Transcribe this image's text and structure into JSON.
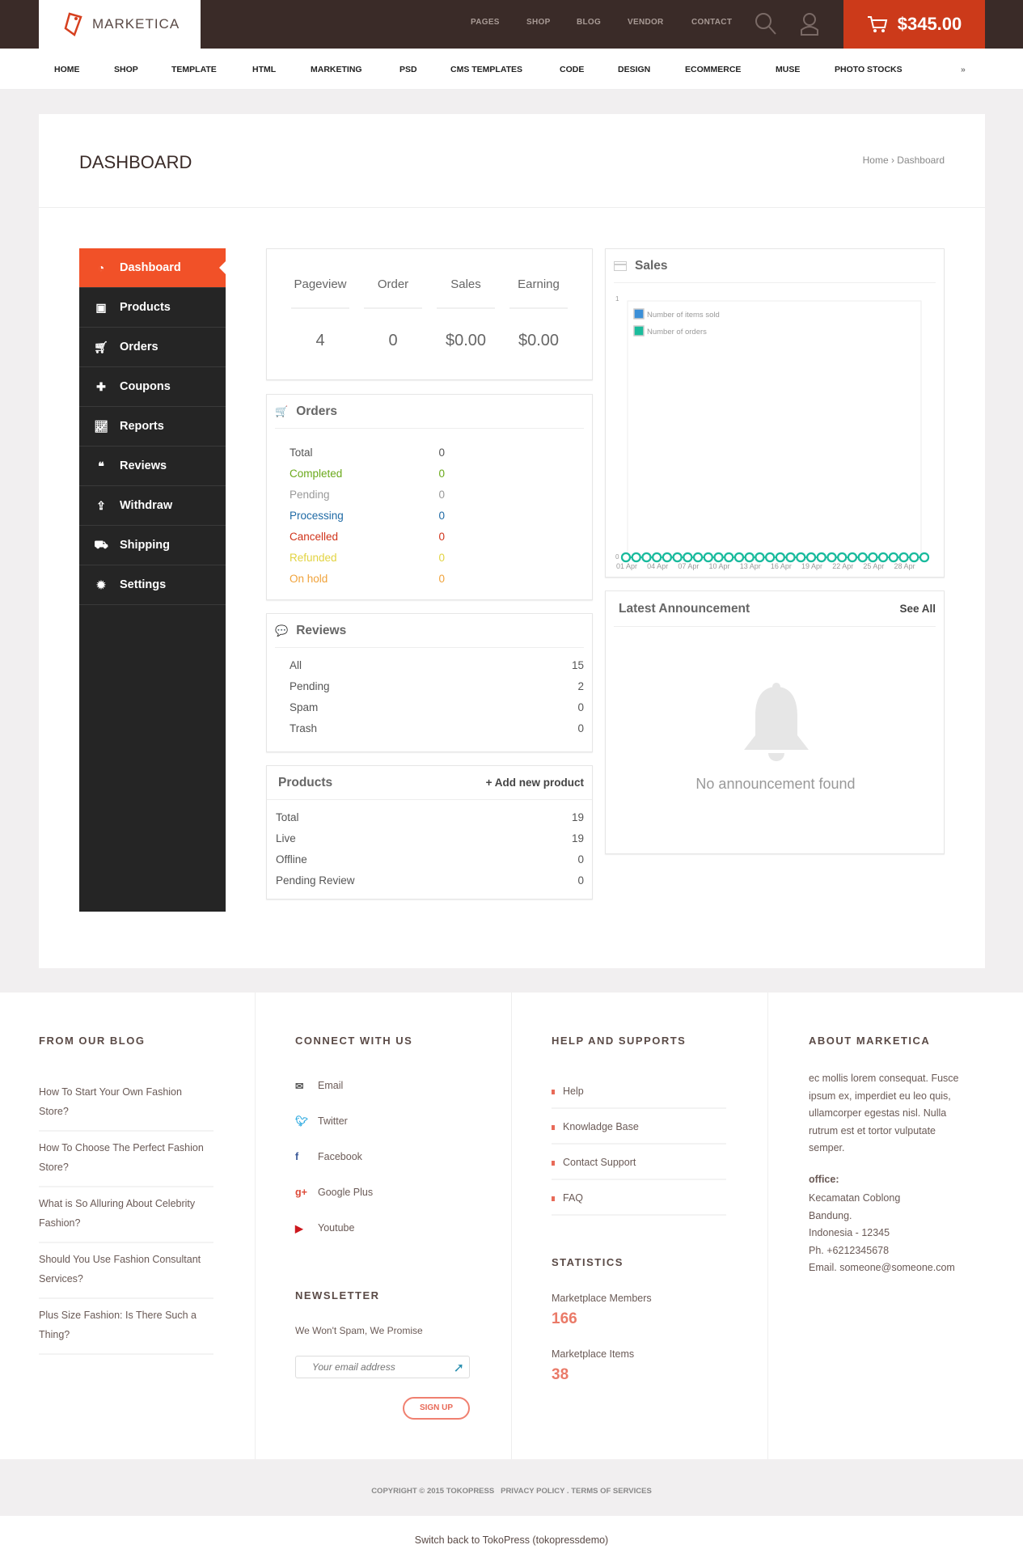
{
  "header": {
    "logo": "MARKETICA",
    "top_links": [
      "PAGES",
      "SHOP",
      "BLOG",
      "VENDOR",
      "CONTACT"
    ],
    "cart_total": "$345.00",
    "brand_color": "#cc3a1a"
  },
  "nav": [
    "HOME",
    "SHOP",
    "TEMPLATE",
    "HTML",
    "MARKETING",
    "PSD",
    "CMS TEMPLATES",
    "CODE",
    "DESIGN",
    "ECOMMERCE",
    "MUSE",
    "PHOTO STOCKS"
  ],
  "page": {
    "title": "DASHBOARD",
    "breadcrumb": "Home › Dashboard"
  },
  "sidebar": [
    {
      "label": "Dashboard",
      "icon": "dashboard-icon",
      "active": true
    },
    {
      "label": "Products",
      "icon": "briefcase-icon"
    },
    {
      "label": "Orders",
      "icon": "cart-icon"
    },
    {
      "label": "Coupons",
      "icon": "gift-icon"
    },
    {
      "label": "Reports",
      "icon": "chart-line-icon"
    },
    {
      "label": "Reviews",
      "icon": "comments-icon"
    },
    {
      "label": "Withdraw",
      "icon": "upload-icon"
    },
    {
      "label": "Shipping",
      "icon": "truck-icon"
    },
    {
      "label": "Settings",
      "icon": "gear-icon"
    }
  ],
  "stats": {
    "headers": [
      "Pageview",
      "Order",
      "Sales",
      "Earning"
    ],
    "values": [
      "4",
      "0",
      "$0.00",
      "$0.00"
    ]
  },
  "orders": {
    "title": "Orders",
    "rows": [
      {
        "label": "Total",
        "value": "0",
        "color": "#555"
      },
      {
        "label": "Completed",
        "value": "0",
        "color": "#6aa91a"
      },
      {
        "label": "Pending",
        "value": "0",
        "color": "#999"
      },
      {
        "label": "Processing",
        "value": "0",
        "color": "#1f6aa5"
      },
      {
        "label": "Cancelled",
        "value": "0",
        "color": "#d0331a"
      },
      {
        "label": "Refunded",
        "value": "0",
        "color": "#e2d341"
      },
      {
        "label": "On hold",
        "value": "0",
        "color": "#f0a23a"
      }
    ]
  },
  "reviews": {
    "title": "Reviews",
    "rows": [
      {
        "label": "All",
        "value": "15"
      },
      {
        "label": "Pending",
        "value": "2"
      },
      {
        "label": "Spam",
        "value": "0"
      },
      {
        "label": "Trash",
        "value": "0"
      }
    ]
  },
  "products": {
    "title": "Products",
    "add": "+ Add new product",
    "rows": [
      {
        "label": "Total",
        "value": "19"
      },
      {
        "label": "Live",
        "value": "19"
      },
      {
        "label": "Offline",
        "value": "0"
      },
      {
        "label": "Pending Review",
        "value": "0"
      }
    ]
  },
  "sales": {
    "title": "Sales"
  },
  "chart_data": {
    "type": "line",
    "x": [
      "01 Apr",
      "02 Apr",
      "03 Apr",
      "04 Apr",
      "05 Apr",
      "06 Apr",
      "07 Apr",
      "08 Apr",
      "09 Apr",
      "10 Apr",
      "11 Apr",
      "12 Apr",
      "13 Apr",
      "14 Apr",
      "15 Apr",
      "16 Apr",
      "17 Apr",
      "18 Apr",
      "19 Apr",
      "20 Apr",
      "21 Apr",
      "22 Apr",
      "23 Apr",
      "24 Apr",
      "25 Apr",
      "26 Apr",
      "27 Apr",
      "28 Apr",
      "29 Apr",
      "30 Apr"
    ],
    "x_tick_labels": [
      "01 Apr",
      "04 Apr",
      "07 Apr",
      "10 Apr",
      "13 Apr",
      "16 Apr",
      "19 Apr",
      "22 Apr",
      "25 Apr",
      "28 Apr"
    ],
    "ylim": [
      0,
      1
    ],
    "y_tick_labels": [
      "1",
      "0"
    ],
    "legend_position": "top-left",
    "series": [
      {
        "name": "Number of items sold",
        "color": "#3a8fd8",
        "values": [
          0,
          0,
          0,
          0,
          0,
          0,
          0,
          0,
          0,
          0,
          0,
          0,
          0,
          0,
          0,
          0,
          0,
          0,
          0,
          0,
          0,
          0,
          0,
          0,
          0,
          0,
          0,
          0,
          0,
          0
        ]
      },
      {
        "name": "Number of orders",
        "color": "#1abc9c",
        "values": [
          0,
          0,
          0,
          0,
          0,
          0,
          0,
          0,
          0,
          0,
          0,
          0,
          0,
          0,
          0,
          0,
          0,
          0,
          0,
          0,
          0,
          0,
          0,
          0,
          0,
          0,
          0,
          0,
          0,
          0
        ]
      }
    ]
  },
  "announcement": {
    "title": "Latest Announcement",
    "see_all": "See All",
    "empty": "No announcement found"
  },
  "footer": {
    "blog": {
      "title": "FROM OUR BLOG",
      "posts": [
        "How To Start Your Own Fashion Store?",
        "How To Choose The Perfect Fashion Store?",
        "What is So Alluring About Celebrity Fashion?",
        "Should You Use Fashion Consultant Services?",
        "Plus Size Fashion: Is There Such a Thing?"
      ]
    },
    "connect": {
      "title": "CONNECT WITH US",
      "links": [
        "Email",
        "Twitter",
        "Facebook",
        "Google Plus",
        "Youtube"
      ]
    },
    "newsletter": {
      "title": "NEWSLETTER",
      "text": "We Won't Spam, We Promise",
      "placeholder": "Your email address",
      "button": "SIGN UP"
    },
    "help": {
      "title": "HELP AND SUPPORTS",
      "links": [
        "Help",
        "Knowladge Base",
        "Contact Support",
        "FAQ"
      ]
    },
    "statistics": {
      "title": "STATISTICS",
      "members_label": "Marketplace Members",
      "members": "166",
      "items_label": "Marketplace Items",
      "items": "38"
    },
    "about": {
      "title": "ABOUT MARKETICA",
      "text": "ec mollis lorem consequat. Fusce ipsum ex, imperdiet eu leo quis, ullamcorper egestas nisl. Nulla rutrum est et tortor vulputate semper.",
      "office_label": "office:",
      "lines": [
        "Kecamatan Coblong",
        "Bandung.",
        "Indonesia - 12345",
        "Ph. +6212345678",
        "Email. someone@someone.com"
      ]
    },
    "copyright": "COPYRIGHT © 2015 TOKOPRESS   PRIVACY POLICY . TERMS OF SERVICES",
    "switch_back": "Switch back to TokoPress (tokopressdemo)"
  }
}
